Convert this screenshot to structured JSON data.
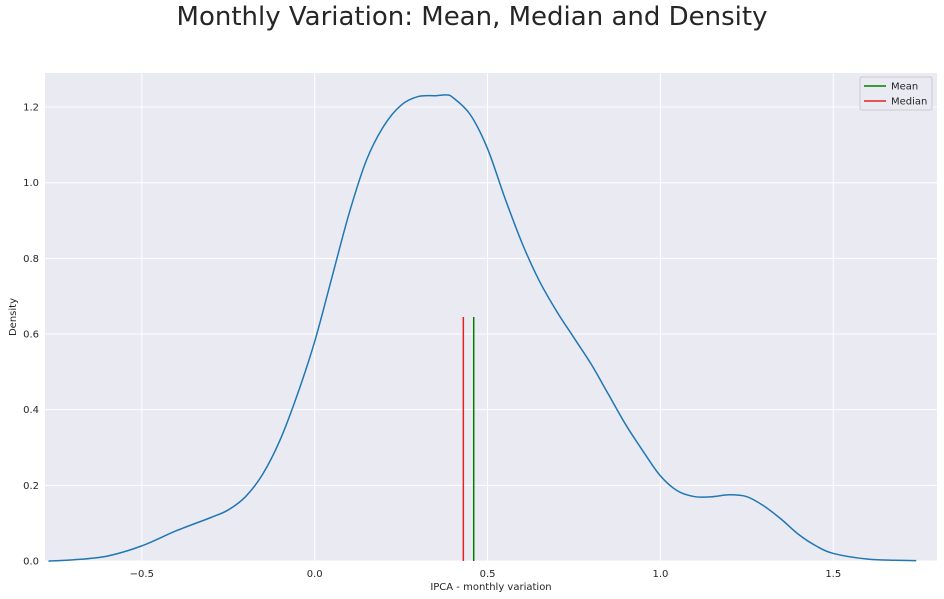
{
  "chart_data": {
    "type": "line",
    "title": "Monthly Variation: Mean, Median and Density",
    "xlabel": "IPCA - monthly variation",
    "ylabel": "Density",
    "xlim": [
      -0.78,
      1.8
    ],
    "ylim": [
      0,
      1.29
    ],
    "x_ticks": [
      -0.5,
      0.0,
      0.5,
      1.0,
      1.5
    ],
    "x_tick_labels": [
      "−0.5",
      "0.0",
      "0.5",
      "1.0",
      "1.5"
    ],
    "y_ticks": [
      0.0,
      0.2,
      0.4,
      0.6,
      0.8,
      1.0,
      1.2
    ],
    "y_tick_labels": [
      "0.0",
      "0.2",
      "0.4",
      "0.6",
      "0.8",
      "1.0",
      "1.2"
    ],
    "grid": true,
    "legend_position": "top-right",
    "series": [
      {
        "name": "Density",
        "color": "#1f77b4",
        "x": [
          -0.77,
          -0.7,
          -0.6,
          -0.5,
          -0.4,
          -0.3,
          -0.25,
          -0.2,
          -0.15,
          -0.1,
          -0.05,
          0.0,
          0.05,
          0.1,
          0.15,
          0.2,
          0.25,
          0.3,
          0.35,
          0.38,
          0.4,
          0.45,
          0.5,
          0.55,
          0.6,
          0.65,
          0.7,
          0.75,
          0.8,
          0.85,
          0.9,
          0.95,
          1.0,
          1.05,
          1.1,
          1.15,
          1.2,
          1.25,
          1.3,
          1.35,
          1.4,
          1.45,
          1.5,
          1.6,
          1.7,
          1.74
        ],
        "y": [
          0.0,
          0.003,
          0.013,
          0.04,
          0.08,
          0.115,
          0.135,
          0.17,
          0.23,
          0.32,
          0.44,
          0.58,
          0.75,
          0.92,
          1.06,
          1.15,
          1.205,
          1.228,
          1.23,
          1.232,
          1.225,
          1.18,
          1.09,
          0.96,
          0.84,
          0.74,
          0.66,
          0.59,
          0.52,
          0.44,
          0.36,
          0.29,
          0.225,
          0.185,
          0.17,
          0.17,
          0.175,
          0.17,
          0.145,
          0.11,
          0.07,
          0.04,
          0.02,
          0.005,
          0.0015,
          0.001
        ]
      }
    ],
    "vlines": [
      {
        "name": "Mean",
        "x": 0.46,
        "ymin": 0,
        "ymax": 0.645,
        "color": "#008000"
      },
      {
        "name": "Median",
        "x": 0.43,
        "ymin": 0,
        "ymax": 0.645,
        "color": "#e8211f"
      }
    ]
  },
  "legend": [
    {
      "label": "Mean",
      "color": "#008000"
    },
    {
      "label": "Median",
      "color": "#e8211f"
    }
  ],
  "style": {
    "plot_background": "#eaeaf2",
    "grid_color": "#ffffff"
  }
}
